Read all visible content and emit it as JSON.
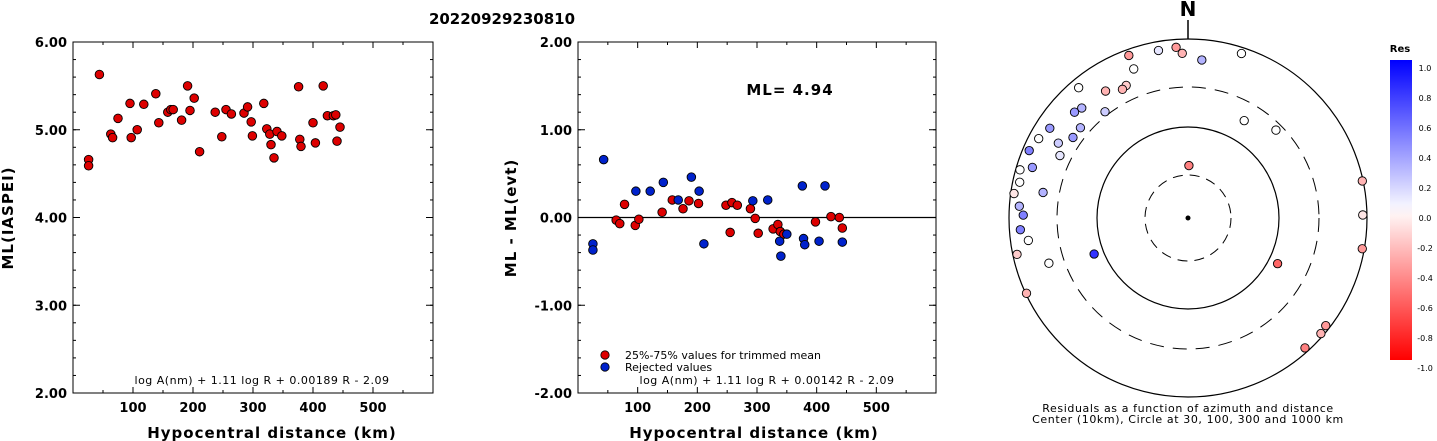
{
  "event_id": "20220929230810",
  "colors": {
    "selected": "#dd0000",
    "rejected": "#0022cc",
    "axis": "#000000"
  },
  "chart_data": [
    {
      "type": "scatter",
      "name": "magnitude_vs_distance",
      "title": "",
      "xlabel": "Hypocentral distance (km)",
      "ylabel": "ML(IASPEI)",
      "xlim": [
        0,
        600
      ],
      "ylim": [
        2.0,
        6.0
      ],
      "xticks": [
        "100",
        "200",
        "300",
        "400",
        "500"
      ],
      "yticks": [
        "2.00",
        "3.00",
        "4.00",
        "5.00",
        "6.00"
      ],
      "formula": "log A(nm) + 1.11 log R + 0.00189 R - 2.09",
      "series": [
        {
          "role": "selected",
          "color": "#dd0000",
          "points": [
            [
              26,
              4.66
            ],
            [
              26,
              4.59
            ],
            [
              44,
              5.63
            ],
            [
              63,
              4.95
            ],
            [
              66,
              4.91
            ],
            [
              75,
              5.13
            ],
            [
              95,
              5.3
            ],
            [
              97,
              4.91
            ],
            [
              107,
              5.0
            ],
            [
              118,
              5.29
            ],
            [
              138,
              5.41
            ],
            [
              143,
              5.08
            ],
            [
              158,
              5.2
            ],
            [
              163,
              5.23
            ],
            [
              167,
              5.23
            ],
            [
              181,
              5.11
            ],
            [
              191,
              5.5
            ],
            [
              195,
              5.22
            ],
            [
              202,
              5.36
            ],
            [
              211,
              4.75
            ],
            [
              237,
              5.2
            ],
            [
              248,
              4.92
            ],
            [
              255,
              5.23
            ],
            [
              264,
              5.18
            ],
            [
              285,
              5.19
            ],
            [
              291,
              5.26
            ],
            [
              297,
              5.09
            ],
            [
              299,
              4.93
            ],
            [
              318,
              5.3
            ],
            [
              323,
              5.01
            ],
            [
              328,
              4.95
            ],
            [
              330,
              4.83
            ],
            [
              335,
              4.68
            ],
            [
              340,
              4.98
            ],
            [
              348,
              4.93
            ],
            [
              376,
              5.49
            ],
            [
              378,
              4.89
            ],
            [
              380,
              4.81
            ],
            [
              400,
              5.08
            ],
            [
              404,
              4.85
            ],
            [
              417,
              5.5
            ],
            [
              424,
              5.16
            ],
            [
              434,
              5.16
            ],
            [
              438,
              5.17
            ],
            [
              440,
              4.87
            ],
            [
              445,
              5.03
            ]
          ]
        }
      ]
    },
    {
      "type": "scatter",
      "name": "residual_vs_distance",
      "title": "",
      "xlabel": "Hypocentral distance (km)",
      "ylabel": "ML - ML(evt)",
      "xlim": [
        0,
        600
      ],
      "ylim": [
        -2.0,
        2.0
      ],
      "xticks": [
        "100",
        "200",
        "300",
        "400",
        "500"
      ],
      "yticks": [
        "-2.00",
        "-1.00",
        "0.00",
        "1.00",
        "2.00"
      ],
      "reference_line": 0.0,
      "ml_label": "ML= 4.94",
      "formula": "log A(nm) + 1.11 log R + 0.00142 R - 2.09",
      "legend": [
        {
          "role": "selected",
          "label": "25%-75% values for trimmed mean",
          "color": "#dd0000"
        },
        {
          "role": "rejected",
          "label": "Rejected values",
          "color": "#0022cc"
        }
      ],
      "series": [
        {
          "role": "selected",
          "color": "#dd0000",
          "points": [
            [
              64,
              -0.03
            ],
            [
              70,
              -0.07
            ],
            [
              78,
              0.15
            ],
            [
              96,
              -0.09
            ],
            [
              102,
              -0.02
            ],
            [
              141,
              0.06
            ],
            [
              158,
              0.2
            ],
            [
              176,
              0.1
            ],
            [
              186,
              0.19
            ],
            [
              202,
              0.16
            ],
            [
              248,
              0.14
            ],
            [
              255,
              -0.17
            ],
            [
              258,
              0.17
            ],
            [
              267,
              0.14
            ],
            [
              289,
              0.1
            ],
            [
              297,
              -0.01
            ],
            [
              302,
              -0.18
            ],
            [
              327,
              -0.13
            ],
            [
              335,
              -0.08
            ],
            [
              339,
              -0.16
            ],
            [
              345,
              -0.19
            ],
            [
              398,
              -0.05
            ],
            [
              424,
              0.01
            ],
            [
              438,
              0.0
            ],
            [
              443,
              -0.12
            ]
          ]
        },
        {
          "role": "rejected",
          "color": "#0022cc",
          "points": [
            [
              25,
              -0.3
            ],
            [
              25,
              -0.37
            ],
            [
              43,
              0.66
            ],
            [
              97,
              0.3
            ],
            [
              121,
              0.3
            ],
            [
              143,
              0.4
            ],
            [
              168,
              0.2
            ],
            [
              190,
              0.46
            ],
            [
              203,
              0.3
            ],
            [
              211,
              -0.3
            ],
            [
              293,
              0.19
            ],
            [
              318,
              0.2
            ],
            [
              338,
              -0.27
            ],
            [
              340,
              -0.44
            ],
            [
              350,
              -0.19
            ],
            [
              376,
              0.36
            ],
            [
              378,
              -0.24
            ],
            [
              380,
              -0.31
            ],
            [
              404,
              -0.27
            ],
            [
              414,
              0.36
            ],
            [
              443,
              -0.28
            ]
          ]
        }
      ]
    },
    {
      "type": "scatter",
      "name": "residual_azimuth_map",
      "north_label": "N",
      "caption_line1": "Residuals as a function of azimuth and distance",
      "caption_line2": "Center (10km), Circle at 30, 100, 300 and 1000 km",
      "colorbar": {
        "title": "Res",
        "range": [
          -1.0,
          1.0
        ],
        "ticks": [
          "1.0",
          "0.8",
          "0.6",
          "0.4",
          "0.2",
          "0.0",
          "-0.2",
          "-0.4",
          "-0.6",
          "-0.8",
          "-1.0"
        ]
      },
      "rings_km": [
        30,
        100,
        300,
        1000
      ],
      "stations": [
        {
          "az": 340,
          "dist_km": 600,
          "res": 0.0
        },
        {
          "az": 335,
          "dist_km": 440,
          "res": -0.2
        },
        {
          "az": 333,
          "dist_km": 420,
          "res": -0.3
        },
        {
          "az": 320,
          "dist_km": 800,
          "res": 0.0
        },
        {
          "az": 327,
          "dist_km": 500,
          "res": -0.3
        },
        {
          "az": 322,
          "dist_km": 330,
          "res": 0.2
        },
        {
          "az": 316,
          "dist_km": 520,
          "res": 0.3
        },
        {
          "az": 313,
          "dist_km": 550,
          "res": 0.4
        },
        {
          "az": 310,
          "dist_km": 380,
          "res": 0.3
        },
        {
          "az": 305,
          "dist_km": 380,
          "res": 0.4
        },
        {
          "az": 303,
          "dist_km": 700,
          "res": 0.4
        },
        {
          "az": 300,
          "dist_km": 480,
          "res": 0.2
        },
        {
          "az": 298,
          "dist_km": 780,
          "res": 0.0
        },
        {
          "az": 296,
          "dist_km": 400,
          "res": 0.1
        },
        {
          "az": 293,
          "dist_km": 850,
          "res": 0.5
        },
        {
          "az": 288,
          "dist_km": 680,
          "res": 0.4
        },
        {
          "az": 286,
          "dist_km": 900,
          "res": 0.0
        },
        {
          "az": 282,
          "dist_km": 840,
          "res": 0.0
        },
        {
          "az": 280,
          "dist_km": 450,
          "res": 0.3
        },
        {
          "az": 278,
          "dist_km": 920,
          "res": -0.1
        },
        {
          "az": 274,
          "dist_km": 780,
          "res": 0.3
        },
        {
          "az": 271,
          "dist_km": 700,
          "res": 0.5
        },
        {
          "az": 266,
          "dist_km": 760,
          "res": 0.5
        },
        {
          "az": 262,
          "dist_km": 640,
          "res": 0.0
        },
        {
          "az": 258,
          "dist_km": 900,
          "res": -0.2
        },
        {
          "az": 252,
          "dist_km": 440,
          "res": 0.0
        },
        {
          "az": 249,
          "dist_km": 130,
          "res": 0.8
        },
        {
          "az": 245,
          "dist_km": 980,
          "res": -0.3
        },
        {
          "az": 350,
          "dist_km": 800,
          "res": 0.1
        },
        {
          "az": 5,
          "dist_km": 600,
          "res": 0.3
        },
        {
          "az": 18,
          "dist_km": 860,
          "res": 0.0
        },
        {
          "az": 358,
          "dist_km": 700,
          "res": -0.3
        },
        {
          "az": 356,
          "dist_km": 820,
          "res": -0.4
        },
        {
          "az": 1,
          "dist_km": 38,
          "res": -0.5
        },
        {
          "az": 30,
          "dist_km": 180,
          "res": 0.0
        },
        {
          "az": 45,
          "dist_km": 250,
          "res": 0.0
        },
        {
          "az": 78,
          "dist_km": 980,
          "res": -0.3
        },
        {
          "az": 89,
          "dist_km": 900,
          "res": -0.1
        },
        {
          "az": 100,
          "dist_km": 950,
          "res": -0.4
        },
        {
          "az": 117,
          "dist_km": 130,
          "res": -0.6
        },
        {
          "az": 128,
          "dist_km": 900,
          "res": -0.4
        },
        {
          "az": 131,
          "dist_km": 930,
          "res": -0.3
        },
        {
          "az": 138,
          "dist_km": 900,
          "res": -0.5
        },
        {
          "az": 340,
          "dist_km": 860,
          "res": -0.4
        }
      ]
    }
  ]
}
